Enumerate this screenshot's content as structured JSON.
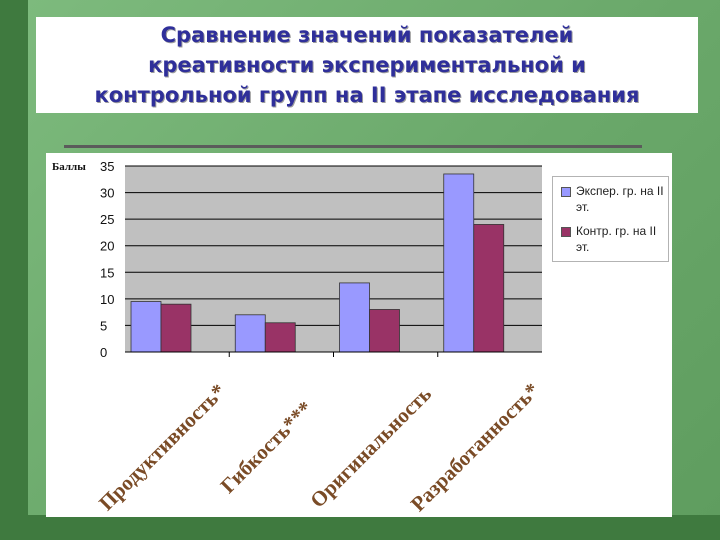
{
  "title": "Сравнение значений показателей\nкреативности экспериментальной и\nконтрольной групп на II этапе исследования",
  "chart_data": {
    "type": "bar",
    "ylabel": "Баллы",
    "xlabel": "",
    "ylim": [
      0,
      35
    ],
    "yticks": [
      0,
      5,
      10,
      15,
      20,
      25,
      30,
      35
    ],
    "grid": true,
    "legend_position": "right",
    "categories": [
      "Продуктивность*",
      "Гибкость***",
      "Оригинальность",
      "Разработанность*"
    ],
    "series": [
      {
        "name": "Экспер. гр. на II эт.",
        "color": "#9999ff",
        "values": [
          9.5,
          7,
          13,
          33.5
        ]
      },
      {
        "name": "Контр. гр. на II эт.",
        "color": "#993366",
        "values": [
          9,
          5.5,
          8,
          24
        ]
      }
    ]
  }
}
